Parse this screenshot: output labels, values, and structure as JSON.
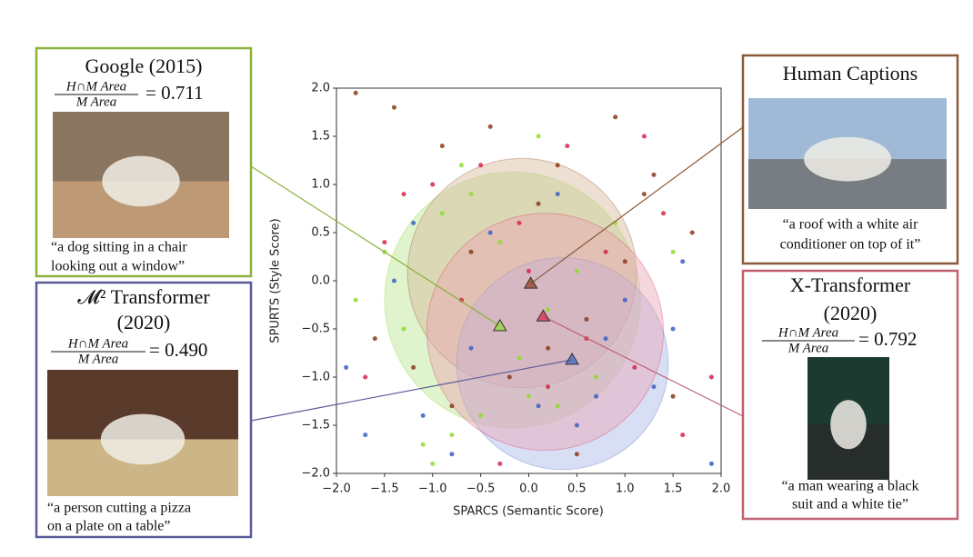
{
  "chart_data": {
    "type": "scatter",
    "xlabel": "SPARCS (Semantic Score)",
    "ylabel": "SPURTS (Style Score)",
    "xlim": [
      -2,
      2
    ],
    "ylim": [
      -2,
      2
    ],
    "xticks": [
      {
        "value": -2,
        "label": "−2.0"
      },
      {
        "value": -1.5,
        "label": "−1.5"
      },
      {
        "value": -1,
        "label": "−1.0"
      },
      {
        "value": -0.5,
        "label": "−0.5"
      },
      {
        "value": 0,
        "label": "0.0"
      },
      0.5,
      {
        "value": 1,
        "label": "1.0"
      },
      1.5,
      {
        "value": 2,
        "label": "2.0"
      }
    ],
    "yticks": [
      {
        "value": -2,
        "label": "−2.0"
      },
      {
        "value": -1.5,
        "label": "−1.5"
      },
      {
        "value": -1,
        "label": "−1.0"
      },
      {
        "value": -0.5,
        "label": "−0.5"
      },
      {
        "value": 0,
        "label": "0.0"
      },
      0.5,
      {
        "value": 1,
        "label": "1.0"
      },
      1.5,
      {
        "value": 2,
        "label": "2.0"
      }
    ],
    "series": [
      {
        "color": "#8fdc2f",
        "region_color": "#b9e48e",
        "x": [
          -1.8,
          -1.5,
          -1.1,
          -0.9,
          -0.7,
          -0.5,
          -0.3,
          -0.1,
          0.1,
          0.3,
          0.5,
          0.7,
          0.9,
          -1.3,
          -0.8,
          0.2,
          1.5,
          -0.6,
          0.0,
          -1.0
        ],
        "y": [
          -0.2,
          0.3,
          -1.7,
          0.7,
          1.2,
          -1.4,
          0.4,
          -0.8,
          1.5,
          -1.3,
          0.1,
          -1.0,
          0.6,
          -0.5,
          -1.6,
          -0.3,
          0.3,
          0.9,
          -1.2,
          -1.9
        ],
        "region": {
          "center": [
            -0.17,
            -0.2
          ],
          "radius": 1.33
        },
        "centroid": [
          -0.3,
          -0.47
        ],
        "callout": {
          "title": [
            "Google (2015)"
          ],
          "ratio_numerator": "H∩M  Area",
          "ratio_denominator": "M  Area",
          "ratio_value": "= 0.711",
          "caption": [
            "“a dog sitting in a chair",
            "looking out a window”"
          ]
        }
      },
      {
        "color": "#8b3a1a",
        "region_color": "#d8b89a",
        "x": [
          -1.8,
          -1.4,
          -1.2,
          -0.9,
          -0.6,
          -0.4,
          -0.2,
          0.1,
          0.3,
          0.6,
          0.9,
          1.2,
          1.5,
          1.7,
          -1.6,
          0.5,
          1.0,
          -0.8,
          0.2,
          1.3
        ],
        "y": [
          1.95,
          1.8,
          -0.9,
          1.4,
          0.3,
          1.6,
          -1.0,
          0.8,
          1.2,
          -0.4,
          1.7,
          0.9,
          -1.2,
          0.5,
          -0.6,
          -1.8,
          0.2,
          -1.3,
          -0.7,
          1.1
        ],
        "region": {
          "center": [
            -0.07,
            0.08
          ],
          "radius": 1.19
        },
        "centroid": [
          0.02,
          -0.03
        ],
        "callout": {
          "title": [
            "Human Captions"
          ],
          "caption": [
            "“a roof with a white air",
            "conditioner on top of it”"
          ]
        }
      },
      {
        "color": "#3b5fc4",
        "region_color": "#a9b9e8",
        "x": [
          -1.9,
          -1.7,
          -1.4,
          -1.1,
          -0.8,
          -0.4,
          0.1,
          0.5,
          0.8,
          1.0,
          1.3,
          1.6,
          1.9,
          -1.2,
          0.3,
          -0.6,
          1.5,
          0.7
        ],
        "y": [
          -0.9,
          -1.6,
          0.0,
          -1.4,
          -1.8,
          0.5,
          -1.3,
          -1.5,
          -0.6,
          -0.2,
          -1.1,
          0.2,
          -1.9,
          0.6,
          0.9,
          -0.7,
          -0.5,
          -1.2
        ],
        "region": {
          "center": [
            0.35,
            -0.86
          ],
          "radius": 1.1
        },
        "centroid": [
          0.45,
          -0.82
        ],
        "callout": {
          "title": [
            "𝓜² Transformer",
            "(2020)"
          ],
          "ratio_numerator": "H∩M  Area",
          "ratio_denominator": "M  Area",
          "ratio_value": "= 0.490",
          "caption": [
            "“a person cutting a pizza",
            "on a plate on a table”"
          ]
        }
      },
      {
        "color": "#d6254a",
        "region_color": "#eaa3b3",
        "x": [
          -1.7,
          -1.3,
          -1.0,
          -0.7,
          -0.5,
          -0.1,
          0.2,
          0.4,
          0.8,
          1.1,
          1.4,
          1.6,
          -1.5,
          0.6,
          1.9,
          -0.3,
          1.2,
          0.0
        ],
        "y": [
          -1.0,
          0.9,
          1.0,
          -0.2,
          1.2,
          0.6,
          -1.1,
          1.4,
          0.3,
          -0.9,
          0.7,
          -1.6,
          0.4,
          -0.6,
          -1.0,
          -1.9,
          1.5,
          0.1
        ],
        "region": {
          "center": [
            0.17,
            -0.53
          ],
          "radius": 1.23
        },
        "centroid": [
          0.15,
          -0.37
        ],
        "callout": {
          "title": [
            "X-Transformer",
            "(2020)"
          ],
          "ratio_numerator": "H∩M  Area",
          "ratio_denominator": "M  Area",
          "ratio_value": "= 0.792",
          "caption": [
            "“a man wearing a black",
            "suit and a white tie”"
          ]
        }
      }
    ]
  }
}
